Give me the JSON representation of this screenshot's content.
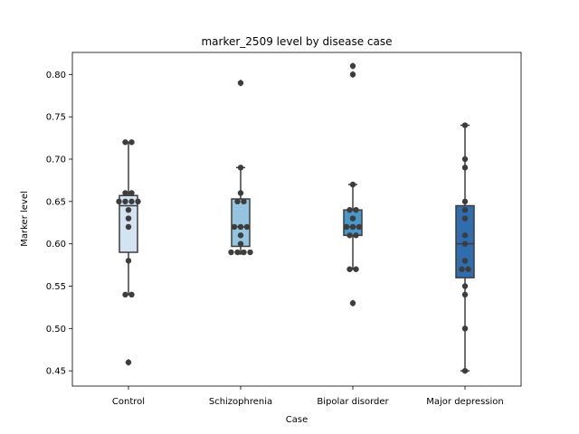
{
  "chart_data": {
    "type": "box",
    "title": "marker_2509 level by disease case",
    "xlabel": "Case",
    "ylabel": "Marker level",
    "ylim": [
      0.432,
      0.826
    ],
    "yticks": [
      0.45,
      0.5,
      0.55,
      0.6,
      0.65,
      0.7,
      0.75,
      0.8
    ],
    "ytick_labels": [
      "0.45",
      "0.50",
      "0.55",
      "0.60",
      "0.65",
      "0.70",
      "0.75",
      "0.80"
    ],
    "grid": false,
    "categories": [
      "Control",
      "Schizophrenia",
      "Bipolar disorder",
      "Major depression"
    ],
    "colors": [
      "#d3e3f2",
      "#94c4df",
      "#4a98c9",
      "#2f6daf"
    ],
    "boxes": [
      {
        "q1": 0.59,
        "median": 0.645,
        "q3": 0.657,
        "whisker_low": 0.54,
        "whisker_high": 0.72,
        "outliers": [
          0.46
        ]
      },
      {
        "q1": 0.597,
        "median": 0.62,
        "q3": 0.653,
        "whisker_low": 0.588,
        "whisker_high": 0.69,
        "outliers": [
          0.79
        ]
      },
      {
        "q1": 0.61,
        "median": 0.62,
        "q3": 0.64,
        "whisker_low": 0.57,
        "whisker_high": 0.67,
        "outliers": [
          0.53,
          0.8,
          0.81
        ]
      },
      {
        "q1": 0.56,
        "median": 0.6,
        "q3": 0.645,
        "whisker_low": 0.45,
        "whisker_high": 0.74,
        "outliers": []
      }
    ],
    "points": [
      [
        0.46,
        0.54,
        0.54,
        0.58,
        0.62,
        0.63,
        0.64,
        0.65,
        0.65,
        0.65,
        0.65,
        0.66,
        0.66,
        0.72,
        0.72
      ],
      [
        0.59,
        0.59,
        0.59,
        0.59,
        0.6,
        0.61,
        0.62,
        0.62,
        0.62,
        0.65,
        0.65,
        0.66,
        0.69,
        0.79
      ],
      [
        0.53,
        0.57,
        0.57,
        0.61,
        0.61,
        0.62,
        0.62,
        0.62,
        0.63,
        0.64,
        0.64,
        0.67,
        0.8,
        0.81
      ],
      [
        0.45,
        0.5,
        0.54,
        0.55,
        0.57,
        0.57,
        0.58,
        0.6,
        0.61,
        0.63,
        0.64,
        0.65,
        0.69,
        0.7,
        0.74
      ]
    ]
  }
}
